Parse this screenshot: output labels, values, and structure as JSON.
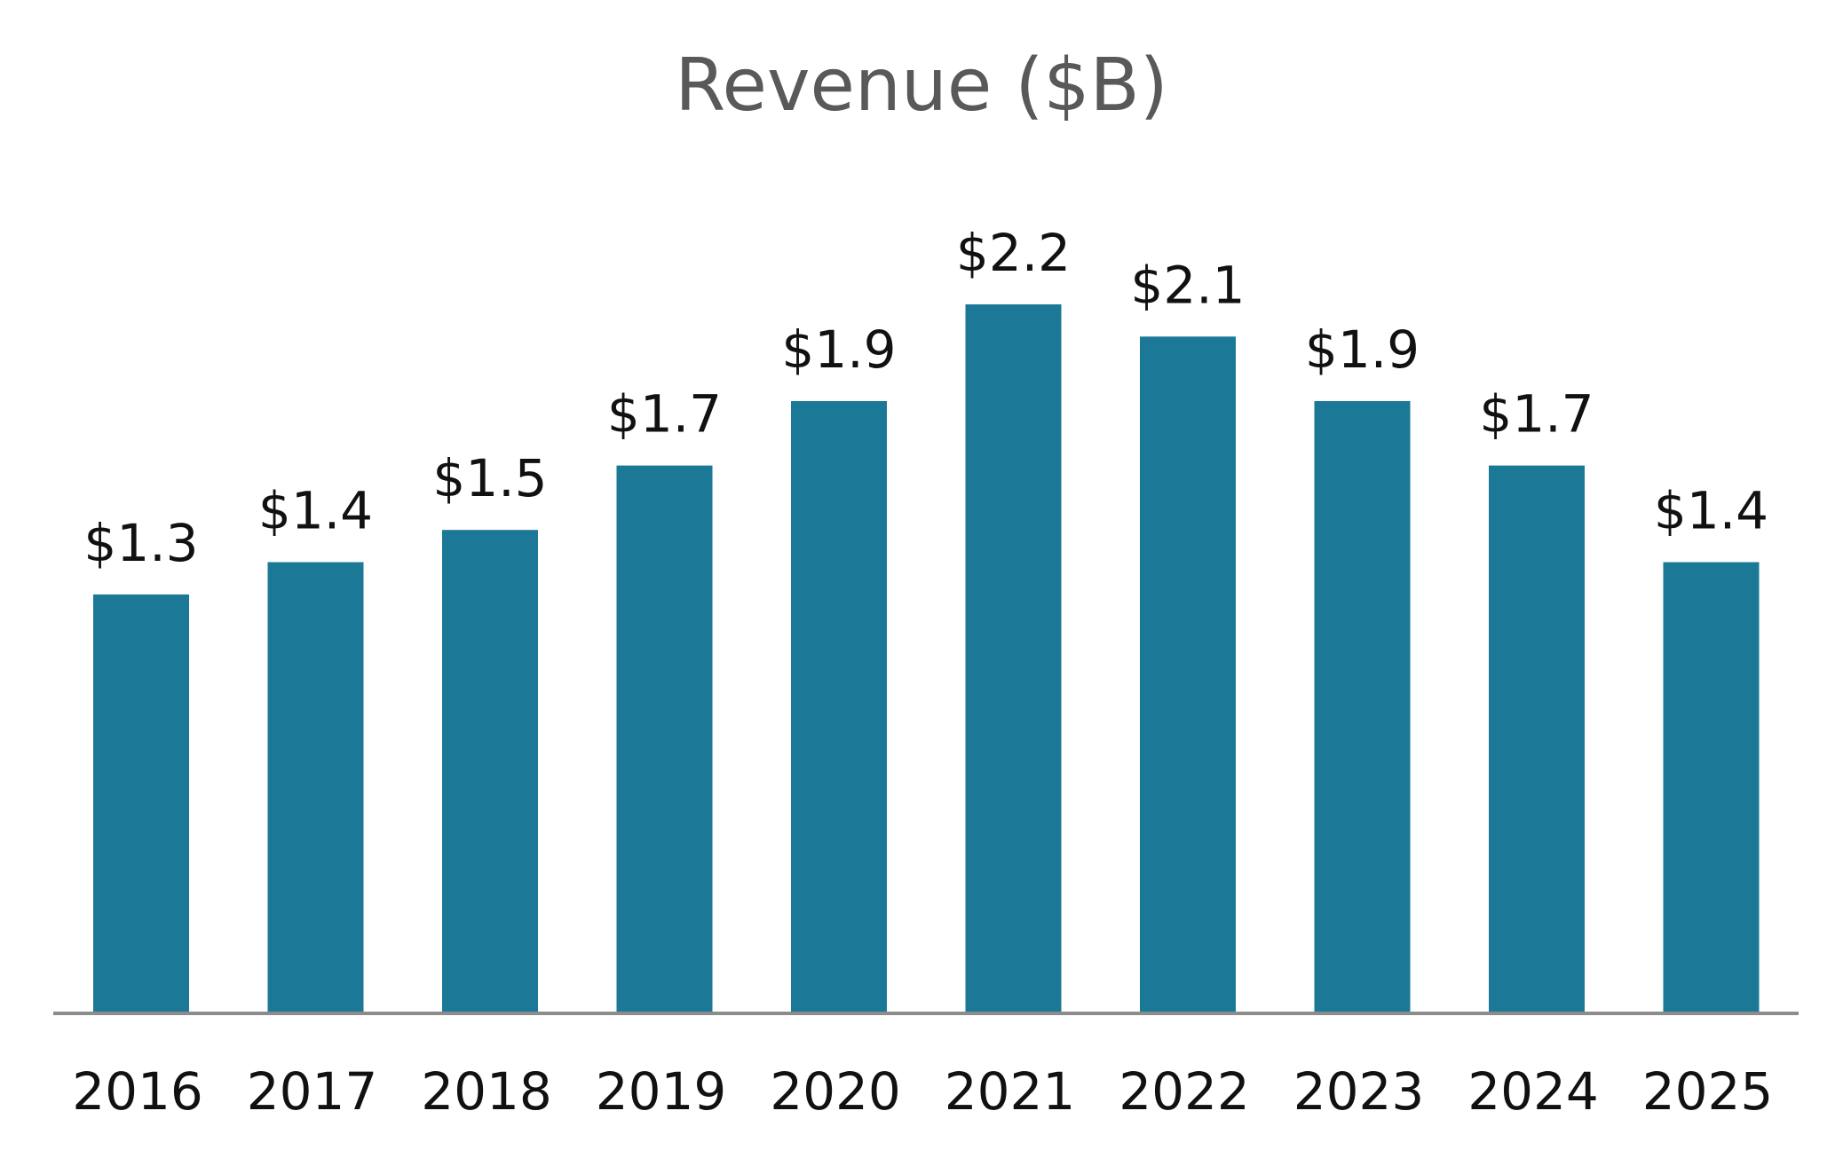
{
  "chart_data": {
    "type": "bar",
    "title": "Revenue ($B)",
    "xlabel": "",
    "ylabel": "",
    "categories": [
      "2016",
      "2017",
      "2018",
      "2019",
      "2020",
      "2021",
      "2022",
      "2023",
      "2024",
      "2025"
    ],
    "values": [
      1.3,
      1.4,
      1.5,
      1.7,
      1.9,
      2.2,
      2.1,
      1.9,
      1.7,
      1.4
    ],
    "data_labels": [
      "$1.3",
      "$1.4",
      "$1.5",
      "$1.7",
      "$1.9",
      "$2.2",
      "$2.1",
      "$1.9",
      "$1.7",
      "$1.4"
    ],
    "ylim": [
      0,
      2.2
    ],
    "grid": false,
    "legend": "none",
    "colors": {
      "bar": "#1b7896",
      "axis": "#8c8c8c",
      "title": "#595959",
      "text": "#111111"
    }
  }
}
